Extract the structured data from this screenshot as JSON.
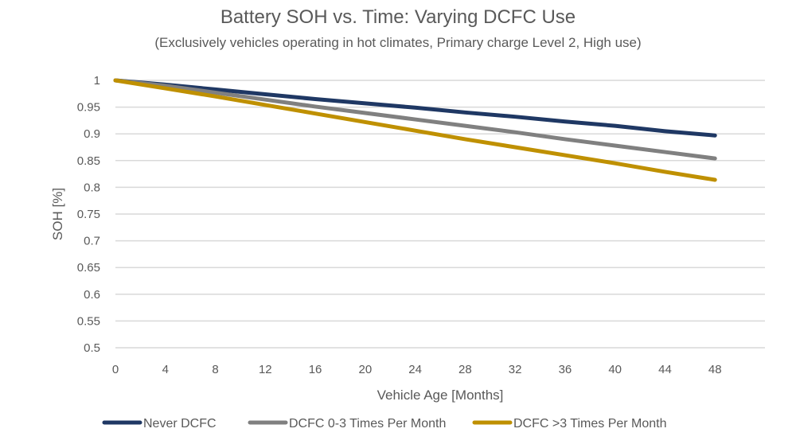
{
  "chart_data": {
    "type": "line",
    "title": "Battery SOH vs. Time: Varying DCFC Use",
    "subtitle": "(Exclusively vehicles operating in hot climates, Primary charge Level 2, High use)",
    "xlabel": "Vehicle Age [Months]",
    "ylabel": "SOH [%]",
    "x": [
      0,
      4,
      8,
      12,
      16,
      20,
      24,
      28,
      32,
      36,
      40,
      44,
      48
    ],
    "xticks": [
      "0",
      "4",
      "8",
      "12",
      "16",
      "20",
      "24",
      "28",
      "32",
      "36",
      "40",
      "44",
      "48"
    ],
    "xlim": [
      0,
      52
    ],
    "yticks": [
      "0.5",
      "0.55",
      "0.6",
      "0.65",
      "0.7",
      "0.75",
      "0.8",
      "0.85",
      "0.9",
      "0.95",
      "1"
    ],
    "ylim": [
      0.5,
      1
    ],
    "grid": "horizontal",
    "legend_position": "bottom",
    "series": [
      {
        "name": "Never DCFC",
        "color": "#1f3864",
        "values": [
          1,
          0.992,
          0.983,
          0.974,
          0.965,
          0.957,
          0.949,
          0.94,
          0.932,
          0.923,
          0.915,
          0.905,
          0.897
        ]
      },
      {
        "name": "DCFC 0-3 Times Per Month",
        "color": "#808080",
        "values": [
          1,
          0.99,
          0.977,
          0.964,
          0.951,
          0.939,
          0.927,
          0.915,
          0.903,
          0.89,
          0.878,
          0.866,
          0.854
        ]
      },
      {
        "name": "DCFC >3 Times Per Month",
        "color": "#bf9000",
        "values": [
          1,
          0.985,
          0.97,
          0.954,
          0.938,
          0.922,
          0.906,
          0.89,
          0.875,
          0.86,
          0.845,
          0.829,
          0.814
        ]
      }
    ]
  }
}
